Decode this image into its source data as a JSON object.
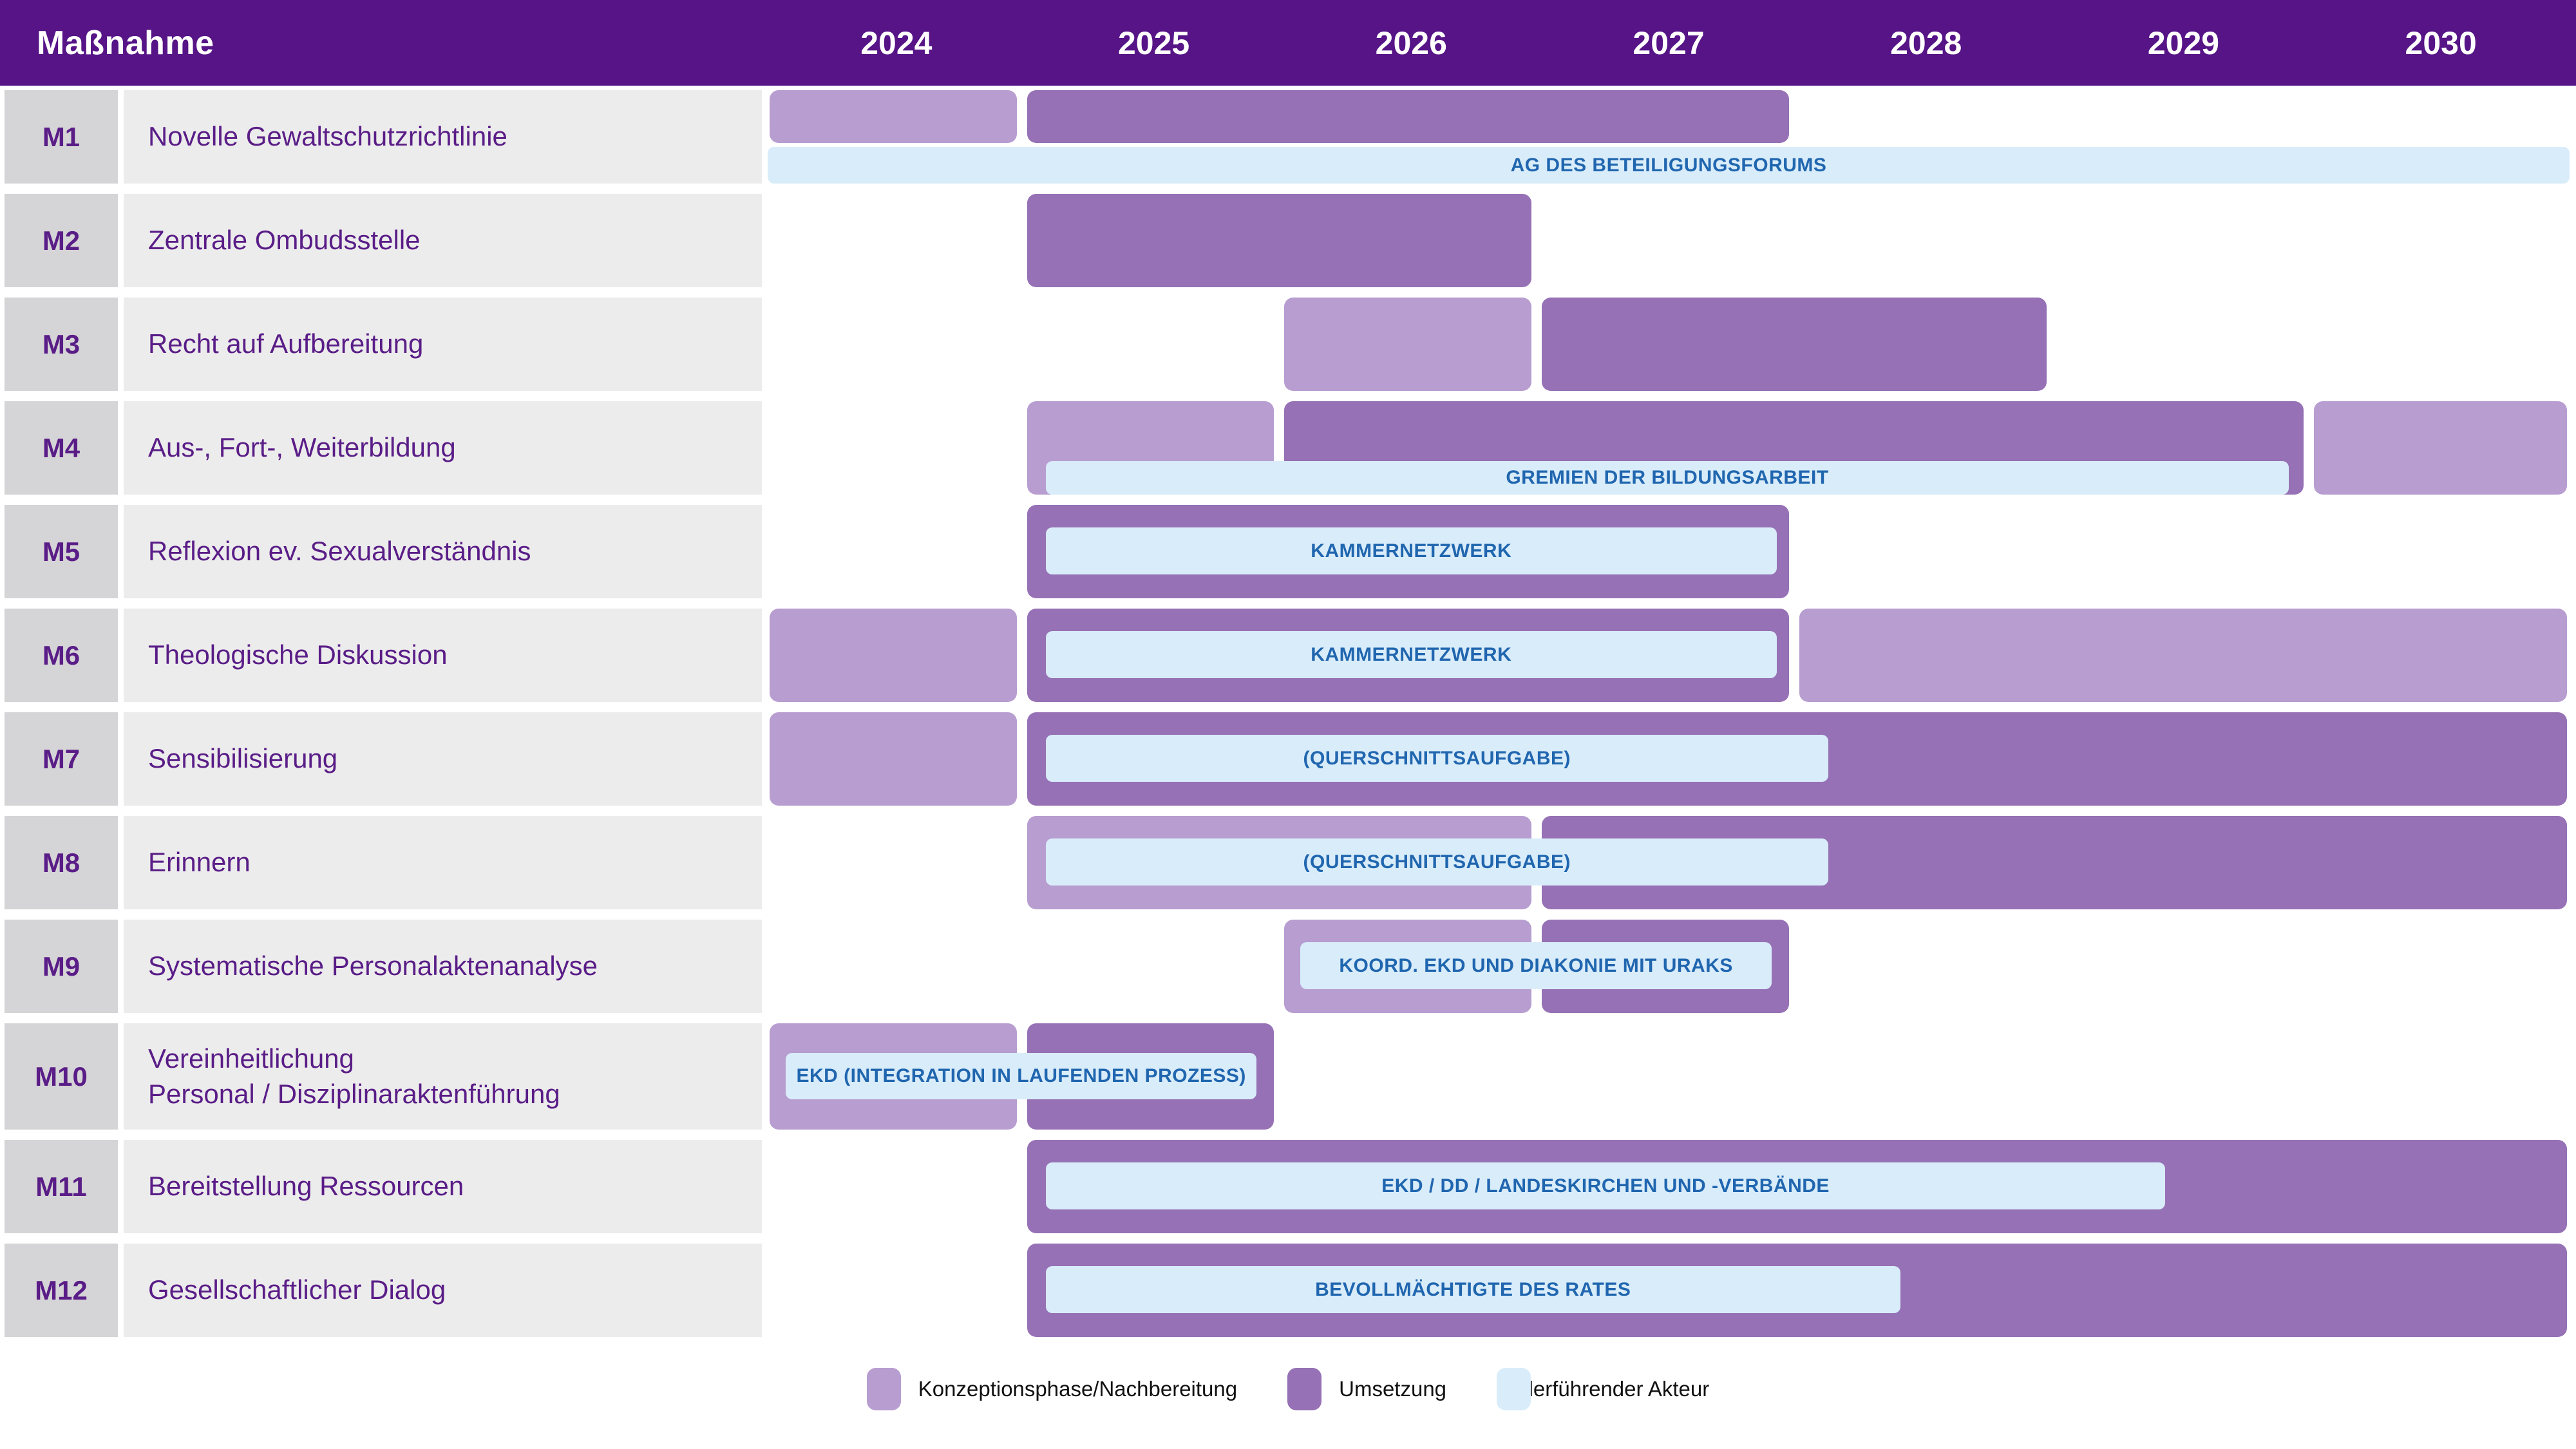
{
  "header": {
    "measure_col_label": "Maßnahme",
    "years": [
      "2024",
      "2025",
      "2026",
      "2027",
      "2028",
      "2029",
      "2030"
    ]
  },
  "colors": {
    "header_bg": "#561487",
    "row_text": "#5a1d87",
    "konzeption": "#b79dd0",
    "umsetzung": "#9671b5",
    "actor_bg": "#d9ecfa",
    "actor_text": "#2066af",
    "id_cell_bg": "#d5d4d6",
    "desc_cell_bg": "#ececec"
  },
  "chart_data": {
    "type": "gantt",
    "x_range": [
      2024,
      2031
    ],
    "x_tick_labels": [
      "2024",
      "2025",
      "2026",
      "2027",
      "2028",
      "2029",
      "2030"
    ],
    "rows": [
      {
        "id": "M1",
        "label": "Novelle Gewaltschutzrichtlinie",
        "tall": false,
        "phases": [
          {
            "type": "konzeption",
            "start": 2024,
            "end": 2025
          },
          {
            "type": "umsetzung",
            "start": 2025,
            "end": 2028
          }
        ],
        "actor": {
          "label": "AG DES BETEILIGUNGSFORUMS",
          "start": 2024.0,
          "end": 2031.0,
          "placement": "below"
        }
      },
      {
        "id": "M2",
        "label": "Zentrale Ombudsstelle",
        "tall": false,
        "phases": [
          {
            "type": "umsetzung",
            "start": 2025,
            "end": 2027
          }
        ],
        "actor": null
      },
      {
        "id": "M3",
        "label": "Recht auf Aufbereitung",
        "tall": false,
        "phases": [
          {
            "type": "konzeption",
            "start": 2026,
            "end": 2027
          },
          {
            "type": "umsetzung",
            "start": 2027,
            "end": 2029
          }
        ],
        "actor": null
      },
      {
        "id": "M4",
        "label": "Aus-, Fort-, Weiterbildung",
        "tall": false,
        "phases": [
          {
            "type": "konzeption",
            "start": 2025,
            "end": 2026
          },
          {
            "type": "umsetzung",
            "start": 2026,
            "end": 2030
          },
          {
            "type": "konzeption",
            "start": 2030,
            "end": 2031
          }
        ],
        "actor": {
          "label": "GREMIEN DER BILDUNGSARBEIT",
          "start": 2025.08,
          "end": 2029.91,
          "placement": "bottom"
        }
      },
      {
        "id": "M5",
        "label": "Reflexion ev. Sexualverständnis",
        "tall": false,
        "phases": [
          {
            "type": "umsetzung",
            "start": 2025,
            "end": 2028
          }
        ],
        "actor": {
          "label": "KAMMERNETZWERK",
          "start": 2025.08,
          "end": 2027.92,
          "placement": "inset"
        }
      },
      {
        "id": "M6",
        "label": "Theologische Diskussion",
        "tall": false,
        "phases": [
          {
            "type": "konzeption",
            "start": 2024,
            "end": 2025
          },
          {
            "type": "umsetzung",
            "start": 2025,
            "end": 2028
          },
          {
            "type": "konzeption",
            "start": 2028,
            "end": 2031
          }
        ],
        "actor": {
          "label": "KAMMERNETZWERK",
          "start": 2025.08,
          "end": 2027.92,
          "placement": "inset"
        }
      },
      {
        "id": "M7",
        "label": "Sensibilisierung",
        "tall": false,
        "phases": [
          {
            "type": "konzeption",
            "start": 2024,
            "end": 2025
          },
          {
            "type": "umsetzung",
            "start": 2025,
            "end": 2031
          }
        ],
        "actor": {
          "label": "(QUERSCHNITTSAUFGABE)",
          "start": 2025.08,
          "end": 2028.12,
          "placement": "inset"
        }
      },
      {
        "id": "M8",
        "label": "Erinnern",
        "tall": false,
        "phases": [
          {
            "type": "konzeption",
            "start": 2025,
            "end": 2027
          },
          {
            "type": "umsetzung",
            "start": 2027,
            "end": 2031
          }
        ],
        "actor": {
          "label": "(QUERSCHNITTSAUFGABE)",
          "start": 2025.08,
          "end": 2028.12,
          "placement": "inset"
        }
      },
      {
        "id": "M9",
        "label": "Systematische Personalaktenanalyse",
        "tall": false,
        "phases": [
          {
            "type": "konzeption",
            "start": 2026,
            "end": 2027
          },
          {
            "type": "umsetzung",
            "start": 2027,
            "end": 2028
          }
        ],
        "actor": {
          "label": "KOORD. EKD UND DIAKONIE MIT URAKS",
          "start": 2026.07,
          "end": 2027.9,
          "placement": "inset"
        }
      },
      {
        "id": "M10",
        "label": "Vereinheitlichung\nPersonal / Disziplinaraktenführung",
        "tall": true,
        "phases": [
          {
            "type": "konzeption",
            "start": 2024,
            "end": 2025
          },
          {
            "type": "umsetzung",
            "start": 2025,
            "end": 2026
          }
        ],
        "actor": {
          "label": "EKD (INTEGRATION IN LAUFENDEN PROZESS)",
          "start": 2024.07,
          "end": 2025.9,
          "placement": "inset"
        }
      },
      {
        "id": "M11",
        "label": "Bereitstellung Ressourcen",
        "tall": false,
        "phases": [
          {
            "type": "umsetzung",
            "start": 2025,
            "end": 2031
          }
        ],
        "actor": {
          "label": "EKD / DD / LANDESKIRCHEN UND -VERBÄNDE",
          "start": 2025.08,
          "end": 2029.43,
          "placement": "inset"
        }
      },
      {
        "id": "M12",
        "label": "Gesellschaftlicher Dialog",
        "tall": false,
        "phases": [
          {
            "type": "umsetzung",
            "start": 2025,
            "end": 2031
          }
        ],
        "actor": {
          "label": "BEVOLLMÄCHTIGTE DES RATES",
          "start": 2025.08,
          "end": 2028.4,
          "placement": "inset"
        }
      }
    ]
  },
  "legend": [
    {
      "type": "konzeption",
      "label": "Konzeptionsphase/Nachbereitung"
    },
    {
      "type": "umsetzung",
      "label": "Umsetzung"
    },
    {
      "type": "actor",
      "label": "Federführender Akteur"
    }
  ]
}
